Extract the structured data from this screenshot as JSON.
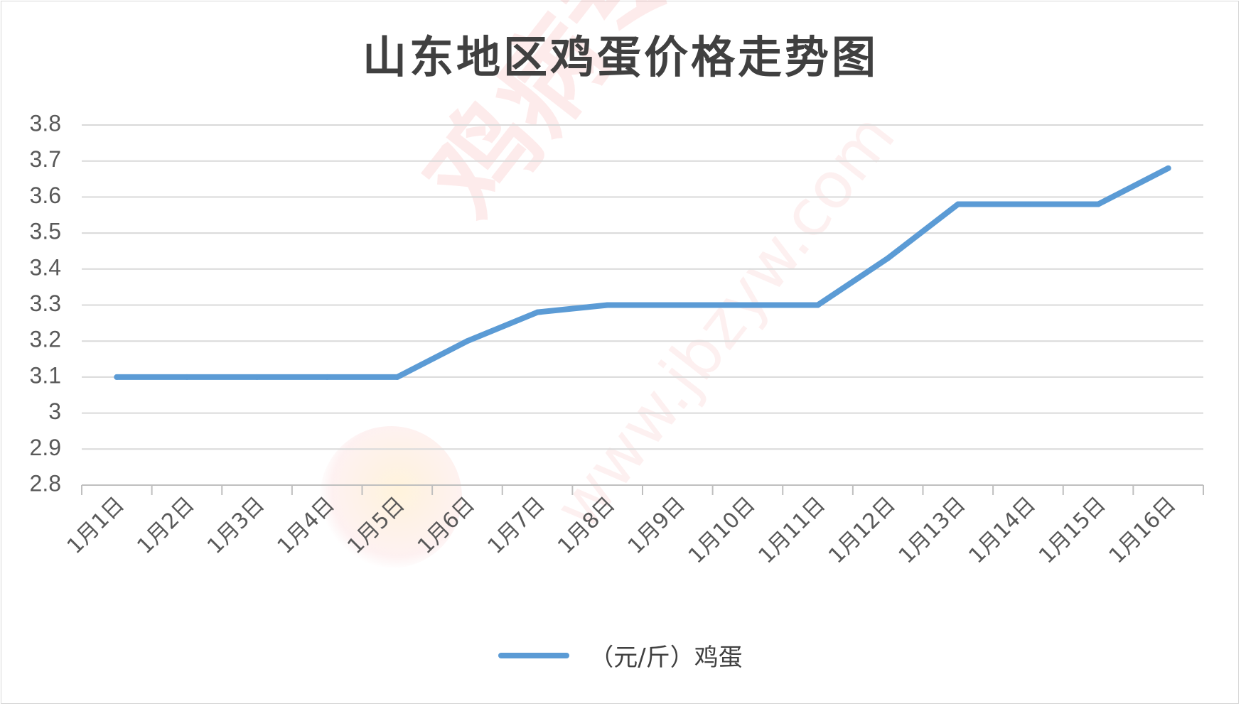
{
  "chart_data": {
    "type": "line",
    "title": "山东地区鸡蛋价格走势图",
    "categories": [
      "1月1日",
      "1月2日",
      "1月3日",
      "1月4日",
      "1月5日",
      "1月6日",
      "1月7日",
      "1月8日",
      "1月9日",
      "1月10日",
      "1月11日",
      "1月12日",
      "1月13日",
      "1月14日",
      "1月15日",
      "1月16日"
    ],
    "series": [
      {
        "name": "（元/斤）鸡蛋",
        "color": "#5b9bd5",
        "values": [
          3.1,
          3.1,
          3.1,
          3.1,
          3.1,
          3.2,
          3.28,
          3.3,
          3.3,
          3.3,
          3.3,
          3.43,
          3.58,
          3.58,
          3.58,
          3.68
        ]
      }
    ],
    "ylim": [
      2.8,
      3.8
    ],
    "yticks": [
      "2.8",
      "2.9",
      "3",
      "3.1",
      "3.2",
      "3.3",
      "3.4",
      "3.5",
      "3.6",
      "3.7",
      "3.8"
    ],
    "grid": true,
    "legend_position": "bottom"
  },
  "watermark": {
    "text": "鸡病专业网",
    "url": "www.jbzyw.com"
  }
}
